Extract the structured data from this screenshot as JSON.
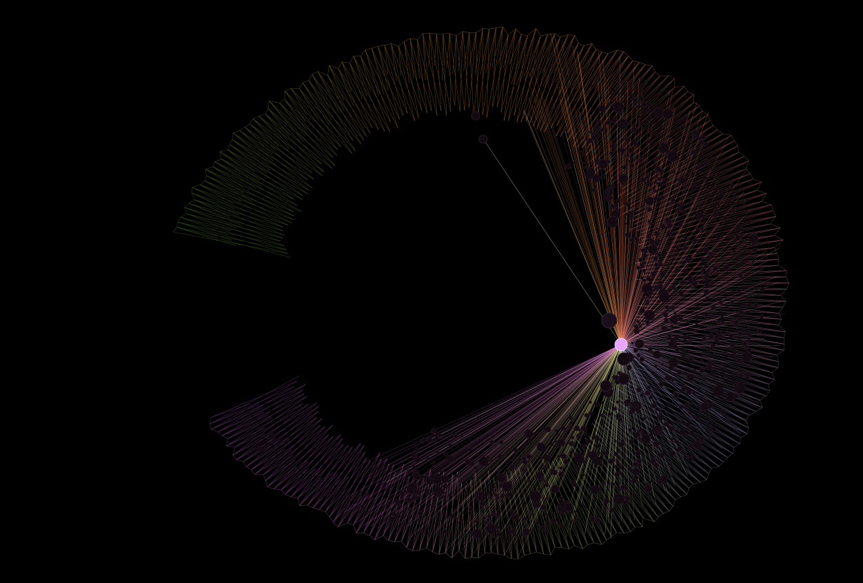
{
  "graph": {
    "title": "",
    "background": "#000000",
    "layout": "radial-spiral",
    "hubs": [
      {
        "id": "hub-main",
        "color": "#e9a6ff",
        "role": "central hub"
      },
      {
        "id": "hub-secondary",
        "color": "#1a0e1a",
        "role": "secondary hub"
      }
    ],
    "edge_color_bands": [
      {
        "name": "green",
        "color": "#4d8a2a"
      },
      {
        "name": "olive",
        "color": "#8c8a30"
      },
      {
        "name": "orange",
        "color": "#e08a2c"
      },
      {
        "name": "salmon",
        "color": "#ef7e6a"
      },
      {
        "name": "pink",
        "color": "#f08aa8"
      },
      {
        "name": "lavender",
        "color": "#b7a8e8"
      },
      {
        "name": "yellow-green",
        "color": "#c8d27a"
      },
      {
        "name": "magenta",
        "color": "#d468c8"
      },
      {
        "name": "purple",
        "color": "#a24cb4"
      }
    ],
    "node_fill": "#120a10",
    "node_stroke": "#2a1826"
  }
}
